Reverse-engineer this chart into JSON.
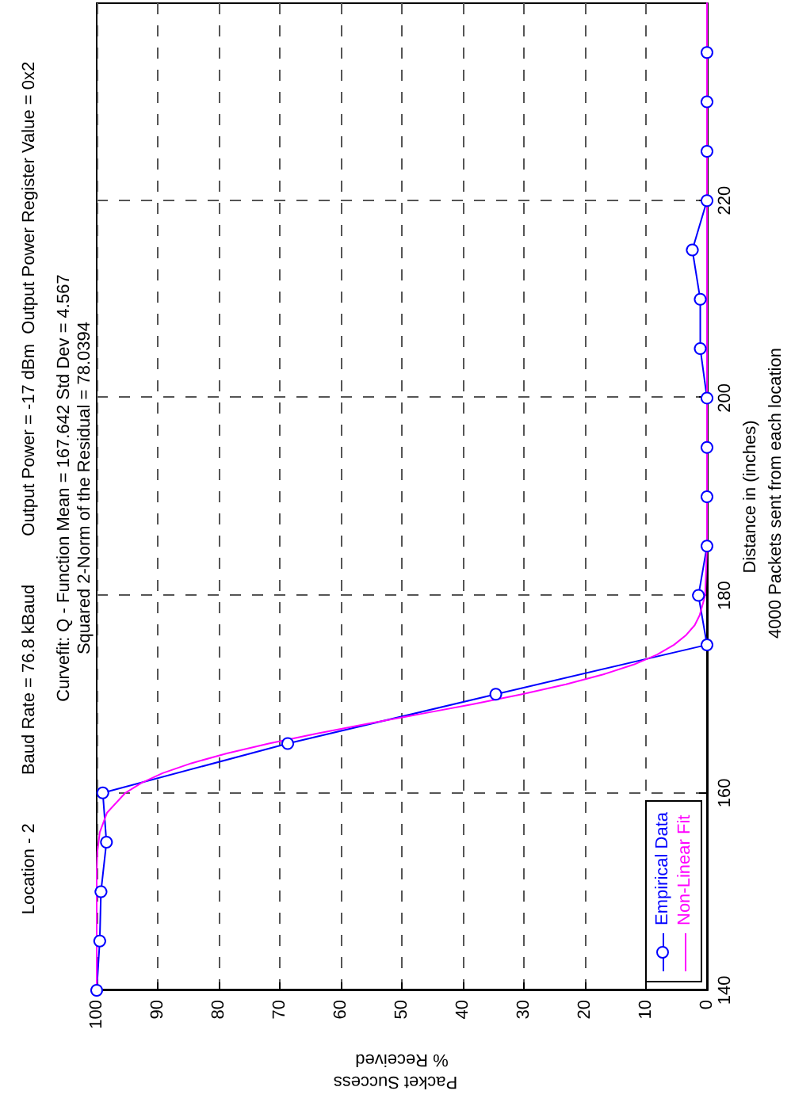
{
  "chart_data": {
    "type": "line",
    "title": "Location - 2          Baud Rate = 76.8 kBaud          Output Power = -17 dBm  Output Power Register Value = 0x2",
    "subtitle": "Curvefit: Q - Function Mean = 167.642 Std Dev = 4.567\nSquared 2-Norm of the Residual = 78.0394",
    "xlabel": "% Received",
    "ylabel": "Distance in (inches)",
    "annotations": [
      "Packet Success",
      "4000 Packets sent from each location"
    ],
    "series": [
      {
        "name": "Empirical Data",
        "color": "#0000ff",
        "marker": "circle",
        "x": [
          100,
          99.5,
          99.3,
          98.4,
          99,
          68.7,
          34.6,
          0,
          1.4,
          0,
          0,
          0,
          0,
          1.1,
          1.1,
          2.4,
          0,
          0,
          0,
          0
        ],
        "values": [
          140,
          145,
          150,
          155,
          160,
          165,
          170,
          175,
          180,
          185,
          190,
          195,
          200,
          205,
          210,
          215,
          220,
          225,
          230,
          235
        ]
      },
      {
        "name": "Non-Linear Fit",
        "color": "#ff00ff",
        "marker": "none",
        "x": [
          100,
          100,
          100,
          99.9,
          99.5,
          98.3,
          95.3,
          92.7,
          89.2,
          84.5,
          78.7,
          71.8,
          64,
          55.6,
          46.9,
          38.3,
          30.3,
          23.1,
          17,
          12,
          8.2,
          5.4,
          3.4,
          2,
          1.2,
          0.3,
          0,
          0
        ],
        "values": [
          140,
          150,
          152,
          154,
          156,
          158,
          160,
          161,
          162,
          163,
          164,
          165,
          166,
          167,
          168,
          169,
          170,
          171,
          172,
          173,
          174,
          175,
          176,
          177,
          178,
          180,
          185,
          240
        ]
      }
    ],
    "xlim": [
      100,
      0
    ],
    "xticks": [
      100,
      90,
      80,
      70,
      60,
      50,
      40,
      30,
      20,
      10,
      0
    ],
    "ylim": [
      140,
      240
    ],
    "yticks": [
      140,
      160,
      180,
      200,
      220
    ],
    "grid": true,
    "legend": "bottom right"
  }
}
